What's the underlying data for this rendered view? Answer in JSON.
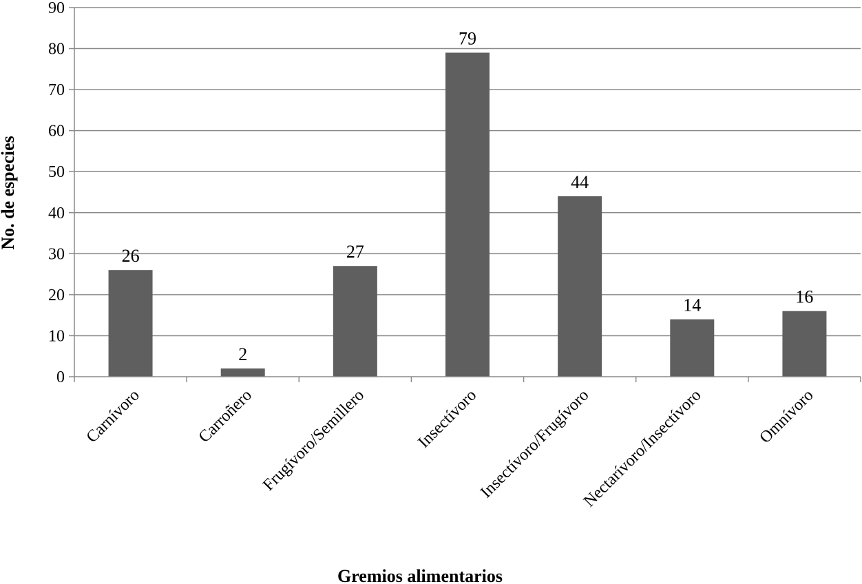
{
  "chart_data": {
    "type": "bar",
    "categories": [
      "Carnívoro",
      "Carroñero",
      "Frugívoro/Semillero",
      "Insectívoro",
      "Insectívoro/Frugívoro",
      "Nectarívoro/Insectívoro",
      "Omnívoro"
    ],
    "values": [
      26,
      2,
      27,
      79,
      44,
      14,
      16
    ],
    "title": "",
    "xlabel": "Gremios alimentarios",
    "ylabel": "No. de especies",
    "ylim": [
      0,
      90
    ],
    "yticks": [
      0,
      10,
      20,
      30,
      40,
      50,
      60,
      70,
      80,
      90
    ],
    "grid": true,
    "legend": "none",
    "data_labels": true,
    "colors": {
      "bar": "#5f5f5f",
      "grid": "#8a8a8a",
      "axis": "#8a8a8a",
      "text": "#000000"
    }
  }
}
